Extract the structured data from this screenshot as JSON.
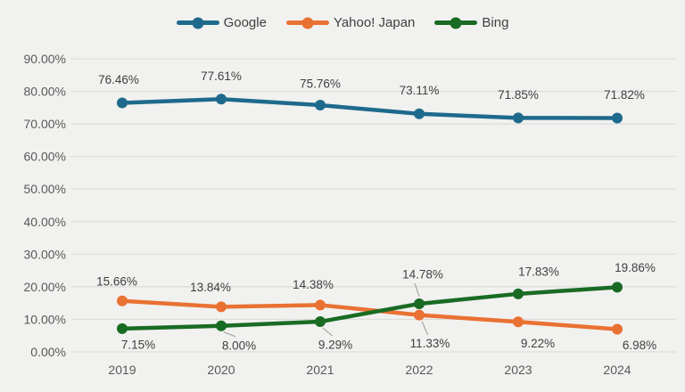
{
  "page": {
    "background": "#F1F1EF"
  },
  "chart_data": {
    "type": "line",
    "title": "",
    "xlabel": "",
    "ylabel": "",
    "x": [
      "2019",
      "2020",
      "2021",
      "2022",
      "2023",
      "2024"
    ],
    "ylim": [
      0,
      90
    ],
    "ytick_step": 10,
    "ytick_labels": [
      "0.00%",
      "10.00%",
      "20.00%",
      "30.00%",
      "40.00%",
      "50.00%",
      "60.00%",
      "70.00%",
      "80.00%",
      "90.00%"
    ],
    "grid": true,
    "legend_position": "top",
    "colors": {
      "gridline": "#DCDCDA",
      "axis_text": "#595959",
      "label_text": "#404040",
      "leader_line": "#A6A6A6"
    },
    "series": [
      {
        "name": "Google",
        "color": "#1E6A8C",
        "values": [
          76.46,
          77.61,
          75.76,
          73.11,
          71.85,
          71.82
        ],
        "labels": [
          "76.46%",
          "77.61%",
          "75.76%",
          "73.11%",
          "71.85%",
          "71.82%"
        ],
        "label_placement": [
          {
            "side": "above",
            "dx": -4,
            "dy": -26,
            "leader": false
          },
          {
            "side": "above",
            "dx": 0,
            "dy": -26,
            "leader": false
          },
          {
            "side": "above",
            "dx": 0,
            "dy": -24,
            "leader": false
          },
          {
            "side": "above",
            "dx": 0,
            "dy": -26,
            "leader": false
          },
          {
            "side": "above",
            "dx": 0,
            "dy": -26,
            "leader": false
          },
          {
            "side": "above",
            "dx": 8,
            "dy": -26,
            "leader": false
          }
        ]
      },
      {
        "name": "Yahoo! Japan",
        "color": "#E97132",
        "values": [
          15.66,
          13.84,
          14.38,
          11.33,
          9.22,
          6.98
        ],
        "labels": [
          "15.66%",
          "13.84%",
          "14.38%",
          "11.33%",
          "9.22%",
          "6.98%"
        ],
        "label_placement": [
          {
            "side": "above",
            "dx": -6,
            "dy": -22,
            "leader": false
          },
          {
            "side": "above",
            "dx": -12,
            "dy": -22,
            "leader": false
          },
          {
            "side": "above",
            "dx": -8,
            "dy": -23,
            "leader": false
          },
          {
            "side": "below",
            "dx": 12,
            "dy": 32,
            "leader": true
          },
          {
            "side": "below",
            "dx": 22,
            "dy": 24,
            "leader": false
          },
          {
            "side": "below",
            "dx": 25,
            "dy": 18,
            "leader": false
          }
        ]
      },
      {
        "name": "Bing",
        "color": "#196B24",
        "values": [
          7.15,
          8.0,
          9.29,
          14.78,
          17.83,
          19.86
        ],
        "labels": [
          "7.15%",
          "8.00%",
          "9.29%",
          "14.78%",
          "17.83%",
          "19.86%"
        ],
        "label_placement": [
          {
            "side": "below",
            "dx": 18,
            "dy": 18,
            "leader": false
          },
          {
            "side": "below",
            "dx": 20,
            "dy": 22,
            "leader": true
          },
          {
            "side": "below",
            "dx": 17,
            "dy": 26,
            "leader": true
          },
          {
            "side": "above",
            "dx": 4,
            "dy": -33,
            "leader": true
          },
          {
            "side": "above",
            "dx": 23,
            "dy": -25,
            "leader": false
          },
          {
            "side": "above",
            "dx": 20,
            "dy": -22,
            "leader": false
          }
        ]
      }
    ]
  }
}
